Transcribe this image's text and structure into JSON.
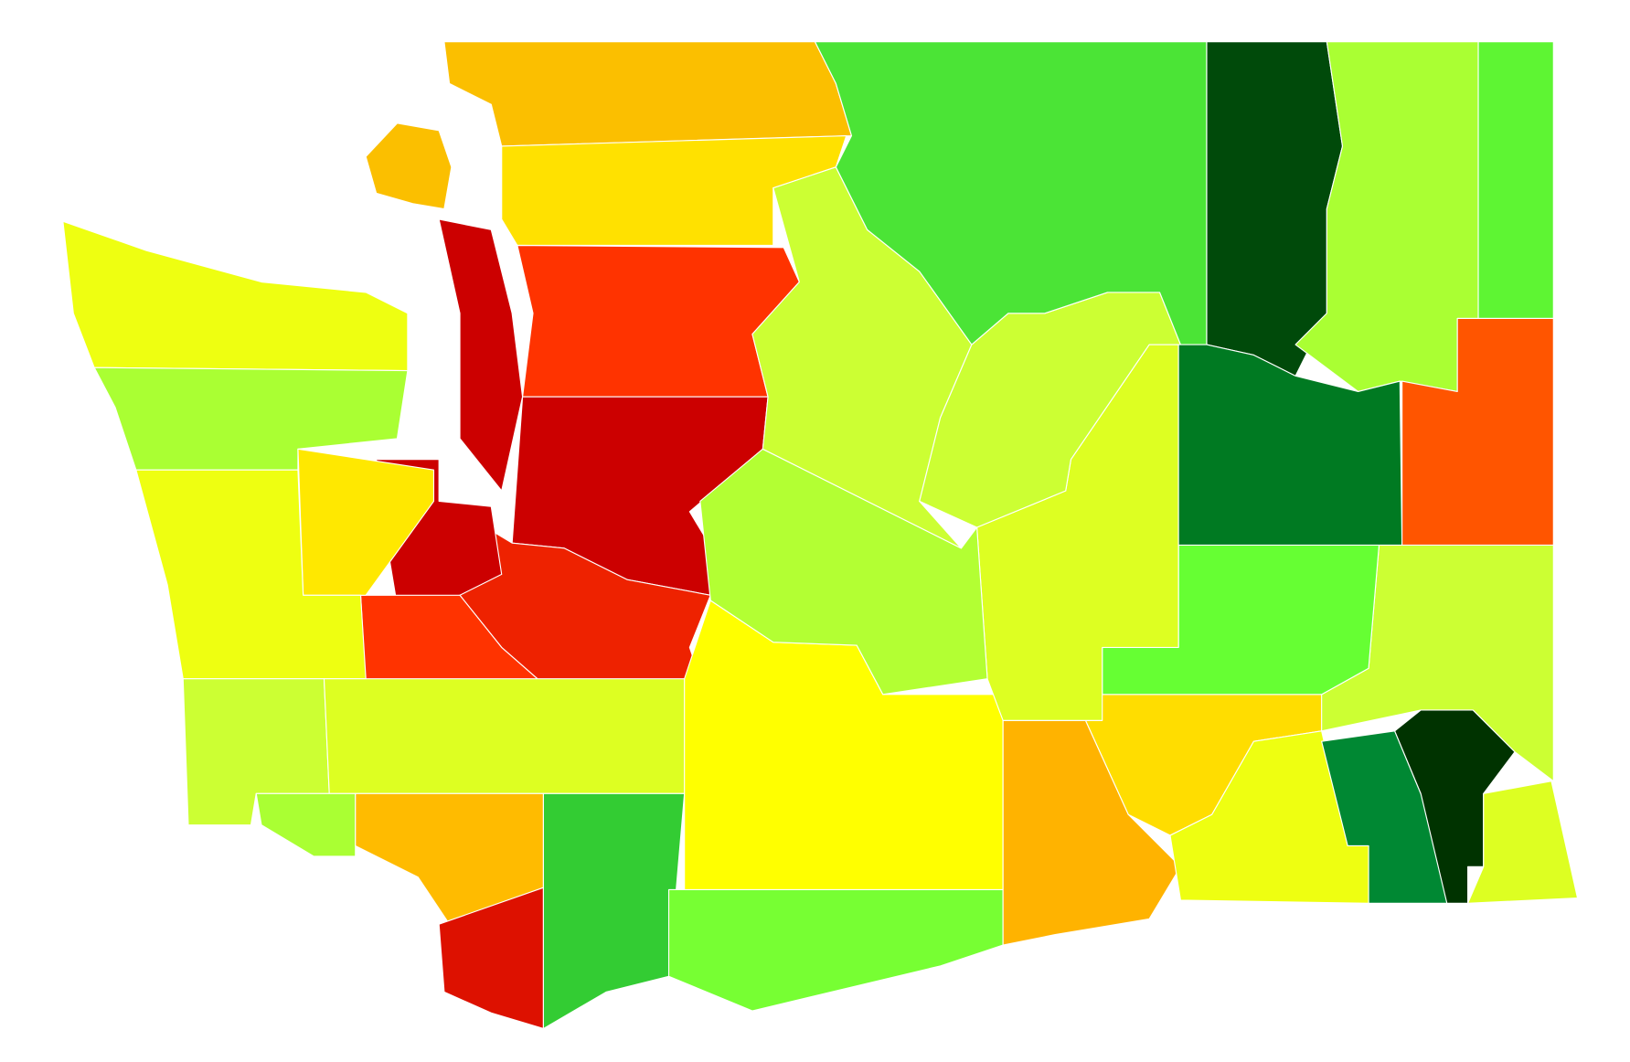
{
  "map": {
    "regions": [
      {
        "color": "#fbbf00"
      },
      {
        "color": "#fbbf00"
      },
      {
        "color": "#ffe100"
      },
      {
        "color": "#ff3300"
      },
      {
        "color": "#cc0000"
      },
      {
        "color": "#ee2200"
      },
      {
        "color": "#cc0000"
      },
      {
        "color": "#cc0000"
      },
      {
        "color": "#ff3300"
      },
      {
        "color": "#eeff11"
      },
      {
        "color": "#aaff33"
      },
      {
        "color": "#ffe800"
      },
      {
        "color": "#eeff11"
      },
      {
        "color": "#ccff33"
      },
      {
        "color": "#ddff22"
      },
      {
        "color": "#aaff33"
      },
      {
        "color": "#ffbb00"
      },
      {
        "color": "#dd1100"
      },
      {
        "color": "#33cc33"
      },
      {
        "color": "#77ff33"
      },
      {
        "color": "#ffff00"
      },
      {
        "color": "#ffb300"
      },
      {
        "color": "#ffdd00"
      },
      {
        "color": "#eeff11"
      },
      {
        "color": "#008833"
      },
      {
        "color": "#003300"
      },
      {
        "color": "#ddff22"
      },
      {
        "color": "#ccff33"
      },
      {
        "color": "#66ff33"
      },
      {
        "color": "#ddff22"
      },
      {
        "color": "#b3ff33"
      },
      {
        "color": "#ccff33"
      },
      {
        "color": "#ccff33"
      },
      {
        "color": "#4be436"
      },
      {
        "color": "#004a0a"
      },
      {
        "color": "#aaff33"
      },
      {
        "color": "#5ef533"
      },
      {
        "color": "#007a22"
      },
      {
        "color": "#ff5500"
      }
    ]
  }
}
